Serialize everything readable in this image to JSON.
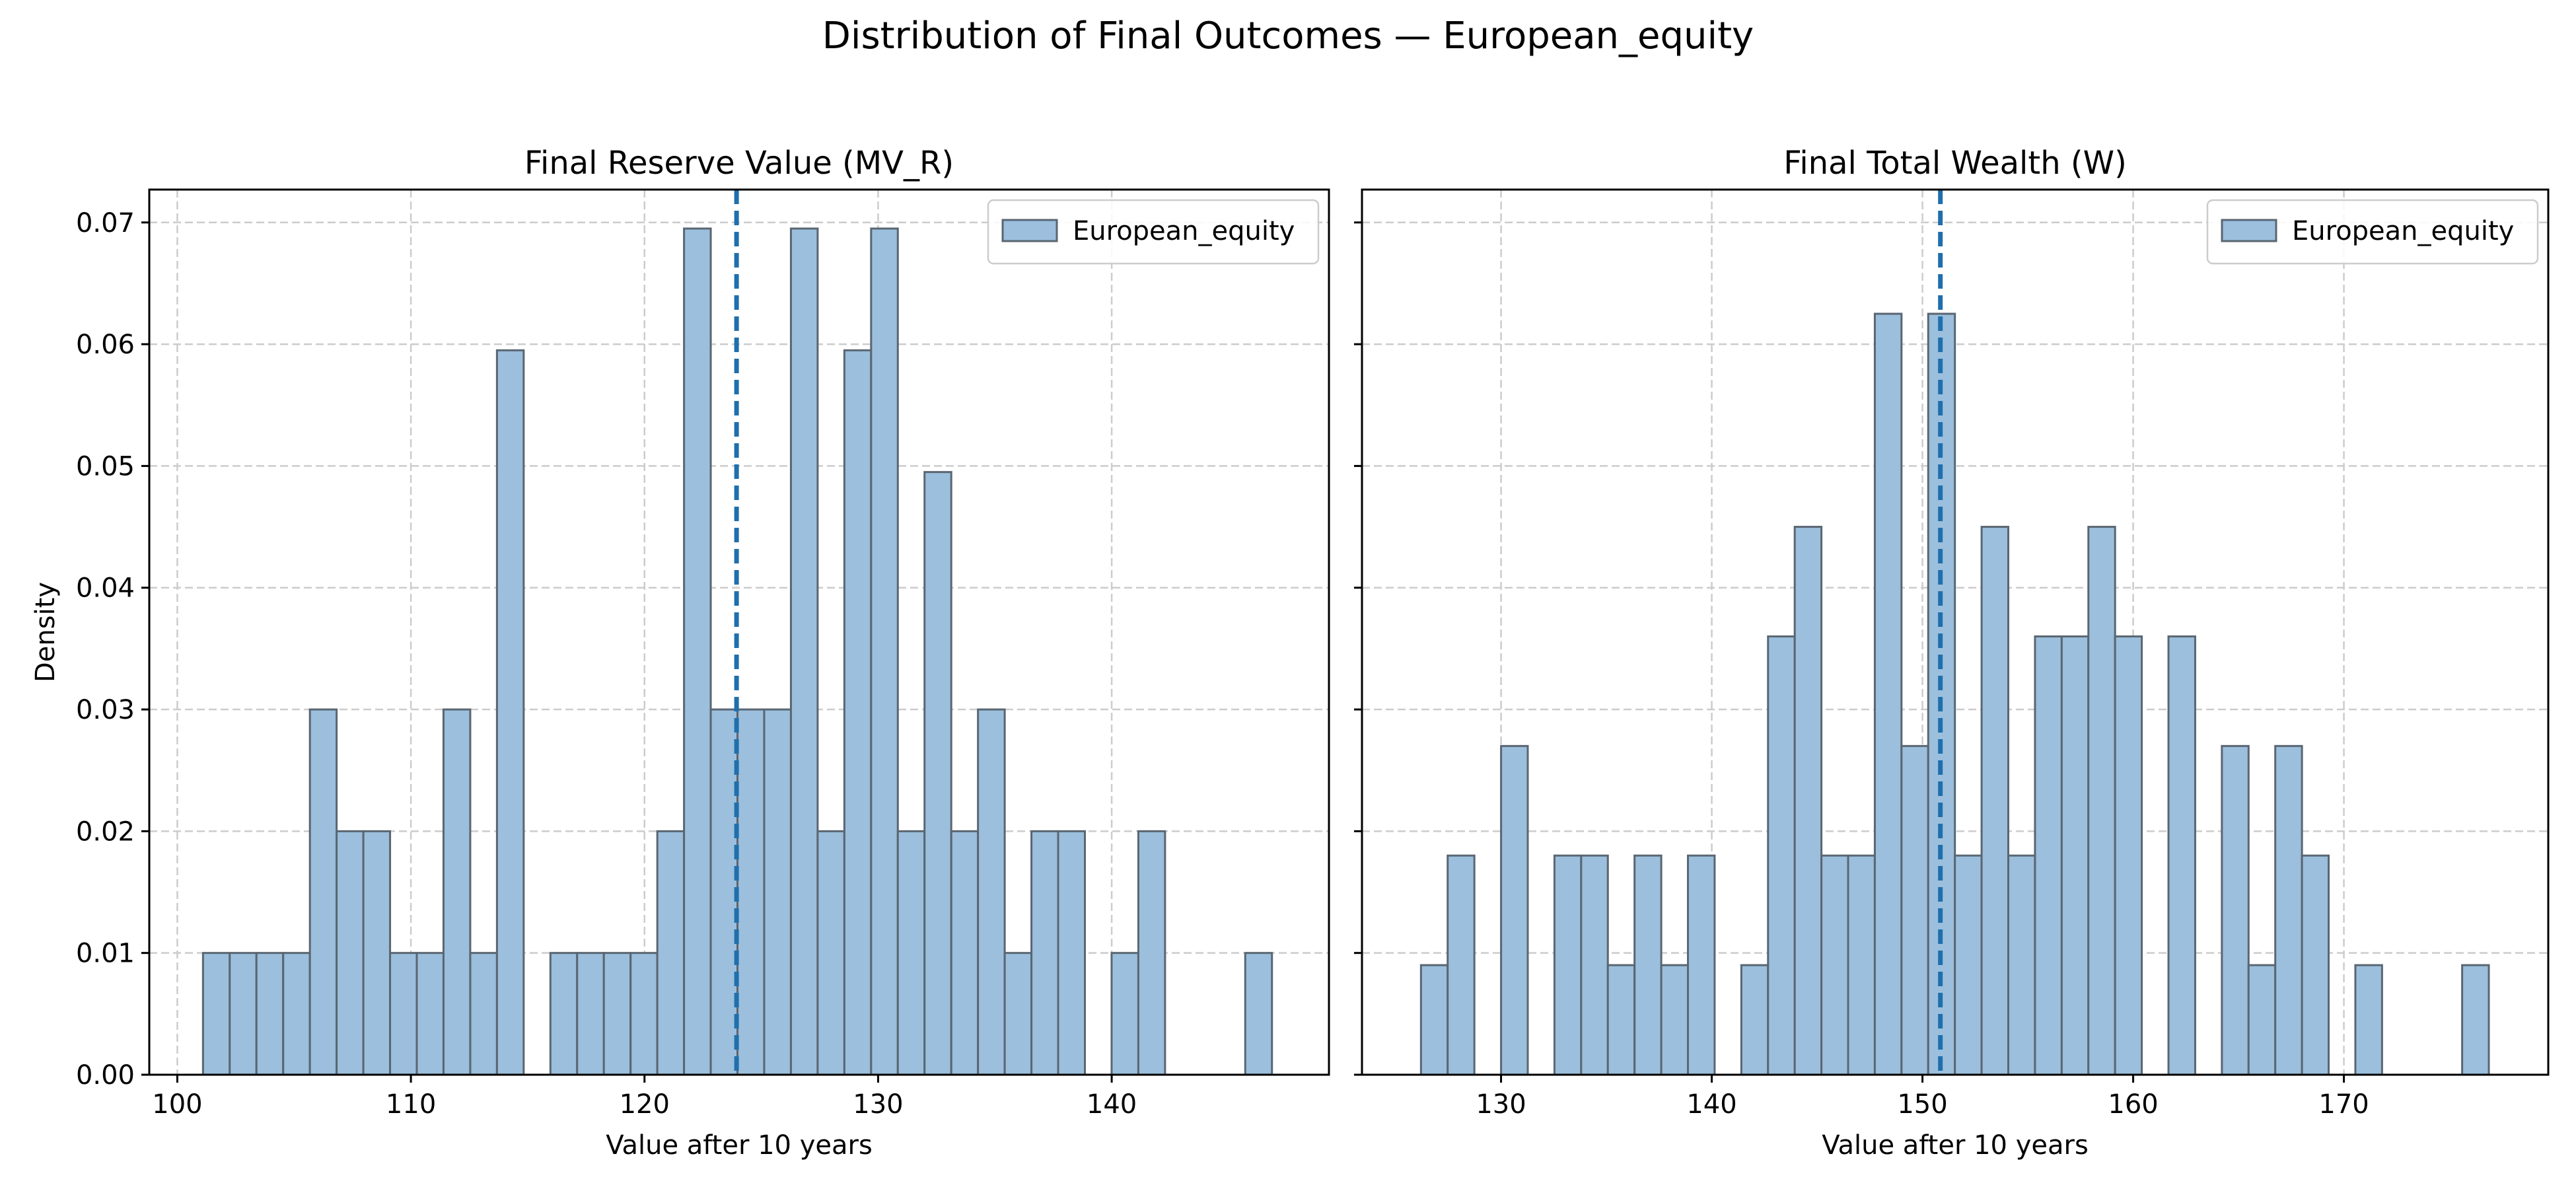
{
  "figure": {
    "suptitle": "Distribution of Final Outcomes — European_equity",
    "bar_color": "#9bbfdc",
    "bar_edge_color": "#5a6672",
    "mean_line_color": "#1f6fad"
  },
  "chart_data": [
    {
      "type": "bar",
      "title": "Final Reserve Value (MV_R)",
      "xlabel": "Value after 10 years",
      "ylabel": "Density",
      "xlim": [
        98.8,
        149.3
      ],
      "ylim": [
        0,
        0.0727
      ],
      "xticks": [
        100,
        110,
        120,
        130,
        140
      ],
      "yticks": [
        0.0,
        0.01,
        0.02,
        0.03,
        0.04,
        0.05,
        0.06,
        0.07
      ],
      "grid": true,
      "legend": {
        "entries": [
          "European_equity"
        ],
        "position": "top-right"
      },
      "mean_line": 123.94,
      "series": [
        {
          "name": "European_equity",
          "bin_start": 101.1,
          "bin_width": 1.144,
          "values": [
            0.01,
            0.01,
            0.01,
            0.01,
            0.03,
            0.02,
            0.02,
            0.01,
            0.01,
            0.03,
            0.01,
            0.0595,
            0,
            0.01,
            0.01,
            0.01,
            0.01,
            0.02,
            0.0695,
            0.03,
            0.03,
            0.03,
            0.0695,
            0.02,
            0.0595,
            0.0695,
            0.02,
            0.0495,
            0.02,
            0.03,
            0.01,
            0.02,
            0.02,
            0,
            0.01,
            0.02,
            0,
            0,
            0,
            0.01
          ]
        }
      ]
    },
    {
      "type": "bar",
      "title": "Final Total Wealth (W)",
      "xlabel": "Value after 10 years",
      "ylabel": "",
      "xlim": [
        123.4,
        179.7
      ],
      "ylim": [
        0,
        0.0727
      ],
      "xticks": [
        130,
        140,
        150,
        160,
        170
      ],
      "yticks": [
        0.0,
        0.01,
        0.02,
        0.03,
        0.04,
        0.05,
        0.06,
        0.07
      ],
      "grid": true,
      "legend": {
        "entries": [
          "European_equity"
        ],
        "position": "top-right"
      },
      "mean_line": 150.85,
      "series": [
        {
          "name": "European_equity",
          "bin_start": 126.2,
          "bin_width": 1.267,
          "values": [
            0.009,
            0.018,
            0,
            0.027,
            0,
            0.018,
            0.018,
            0.009,
            0.018,
            0.009,
            0.018,
            0,
            0.009,
            0.036,
            0.045,
            0.018,
            0.018,
            0.0625,
            0.027,
            0.0625,
            0.018,
            0.045,
            0.018,
            0.036,
            0.036,
            0.045,
            0.036,
            0,
            0.036,
            0,
            0.027,
            0.009,
            0.027,
            0.018,
            0,
            0.009,
            0,
            0,
            0,
            0.009
          ]
        }
      ]
    }
  ]
}
